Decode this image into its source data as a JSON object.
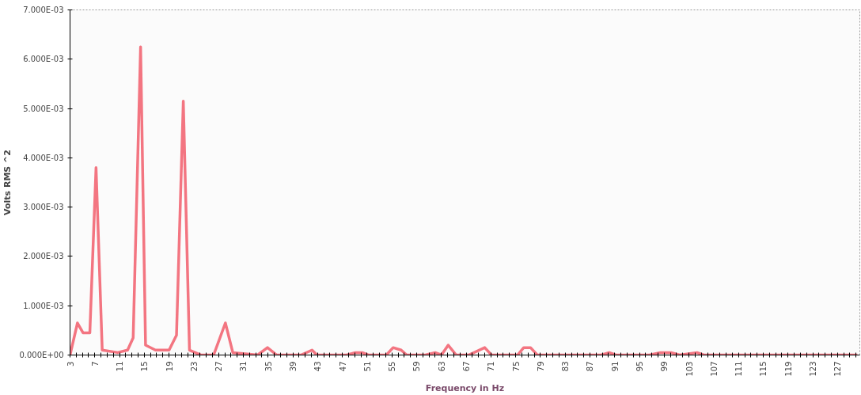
{
  "chart_data": {
    "type": "line",
    "xlabel": "Frequency in Hz",
    "ylabel": "Volts RMS ^2",
    "x": [
      3.0,
      4.2,
      5.1,
      6.2,
      7.2,
      8.2,
      10.7,
      12.3,
      13.2,
      14.4,
      15.2,
      16.8,
      19.0,
      20.2,
      21.3,
      22.3,
      24.2,
      26.2,
      28.1,
      29.3,
      33.3,
      34.9,
      36.4,
      40.3,
      42.1,
      42.9,
      47.7,
      49.1,
      50.2,
      51.2,
      54.1,
      55.2,
      56.5,
      57.4,
      60.4,
      62.0,
      63.0,
      64.1,
      65.4,
      67.4,
      70.0,
      71.1,
      75.3,
      76.3,
      77.4,
      78.5,
      84.0,
      86.2,
      88.8,
      90.1,
      91.2,
      96.6,
      98.4,
      100.1,
      101.5,
      104.3,
      105.4,
      107.6,
      108.9,
      111.1,
      113.2,
      116.3,
      121.1,
      122.8,
      125.0,
      127.6,
      130.2
    ],
    "series": [
      {
        "color": "#f26673",
        "values": [
          0.0,
          0.00065,
          0.00045,
          0.00045,
          0.0038,
          0.0001,
          5e-05,
          0.0001,
          0.00035,
          0.00625,
          0.0002,
          0.0001,
          0.0001,
          0.0004,
          0.00515,
          0.0001,
          0.0,
          0.0,
          0.00065,
          5e-05,
          0.0,
          0.00015,
          0.0,
          0.0,
          0.0001,
          0.0,
          0.0,
          5e-05,
          5e-05,
          0.0,
          0.0,
          0.00015,
          0.0001,
          0.0,
          0.0,
          5e-05,
          0.0,
          0.0002,
          0.0,
          0.0,
          0.00015,
          0.0,
          0.0,
          0.00015,
          0.00015,
          0.0,
          0.0,
          0.0,
          0.0,
          5e-05,
          0.0,
          0.0,
          5e-05,
          5e-05,
          0.0,
          5e-05,
          0.0,
          0.0,
          0.0,
          0.0,
          0.0,
          0.0,
          0.0,
          0.0,
          0.0,
          0.0,
          0.0
        ]
      }
    ],
    "xlim": [
      3,
      130.6
    ],
    "xticks": [
      3,
      {
        "value": 4,
        "label": null
      },
      {
        "value": 5,
        "label": null
      },
      {
        "value": 6,
        "label": null
      },
      7,
      {
        "value": 8,
        "label": null
      },
      {
        "value": 9,
        "label": null
      },
      {
        "value": 10,
        "label": null
      },
      11,
      {
        "value": 12,
        "label": null
      },
      {
        "value": 13,
        "label": null
      },
      {
        "value": 14,
        "label": null
      },
      15,
      {
        "value": 16,
        "label": null
      },
      {
        "value": 17,
        "label": null
      },
      {
        "value": 18,
        "label": null
      },
      19,
      {
        "value": 20,
        "label": null
      },
      {
        "value": 21,
        "label": null
      },
      {
        "value": 22,
        "label": null
      },
      23,
      {
        "value": 24,
        "label": null
      },
      {
        "value": 25,
        "label": null
      },
      {
        "value": 26,
        "label": null
      },
      27,
      {
        "value": 28,
        "label": null
      },
      {
        "value": 29,
        "label": null
      },
      {
        "value": 30,
        "label": null
      },
      31,
      {
        "value": 32,
        "label": null
      },
      {
        "value": 33,
        "label": null
      },
      {
        "value": 34,
        "label": null
      },
      35,
      {
        "value": 36,
        "label": null
      },
      {
        "value": 37,
        "label": null
      },
      {
        "value": 38,
        "label": null
      },
      39,
      {
        "value": 40,
        "label": null
      },
      {
        "value": 41,
        "label": null
      },
      {
        "value": 42,
        "label": null
      },
      43,
      {
        "value": 44,
        "label": null
      },
      {
        "value": 45,
        "label": null
      },
      {
        "value": 46,
        "label": null
      },
      47,
      {
        "value": 48,
        "label": null
      },
      {
        "value": 49,
        "label": null
      },
      {
        "value": 50,
        "label": null
      },
      51,
      {
        "value": 52,
        "label": null
      },
      {
        "value": 53,
        "label": null
      },
      {
        "value": 54,
        "label": null
      },
      55,
      {
        "value": 56,
        "label": null
      },
      {
        "value": 57,
        "label": null
      },
      {
        "value": 58,
        "label": null
      },
      59,
      {
        "value": 60,
        "label": null
      },
      {
        "value": 61,
        "label": null
      },
      {
        "value": 62,
        "label": null
      },
      63,
      {
        "value": 64,
        "label": null
      },
      {
        "value": 65,
        "label": null
      },
      {
        "value": 66,
        "label": null
      },
      67,
      {
        "value": 68,
        "label": null
      },
      {
        "value": 69,
        "label": null
      },
      {
        "value": 70,
        "label": null
      },
      71,
      {
        "value": 72,
        "label": null
      },
      {
        "value": 73,
        "label": null
      },
      {
        "value": 74,
        "label": null
      },
      75,
      {
        "value": 76,
        "label": null
      },
      {
        "value": 77,
        "label": null
      },
      {
        "value": 78,
        "label": null
      },
      79,
      {
        "value": 80,
        "label": null
      },
      {
        "value": 81,
        "label": null
      },
      {
        "value": 82,
        "label": null
      },
      83,
      {
        "value": 84,
        "label": null
      },
      {
        "value": 85,
        "label": null
      },
      {
        "value": 86,
        "label": null
      },
      87,
      {
        "value": 88,
        "label": null
      },
      {
        "value": 89,
        "label": null
      },
      {
        "value": 90,
        "label": null
      },
      91,
      {
        "value": 92,
        "label": null
      },
      {
        "value": 93,
        "label": null
      },
      {
        "value": 94,
        "label": null
      },
      95,
      {
        "value": 96,
        "label": null
      },
      {
        "value": 97,
        "label": null
      },
      {
        "value": 98,
        "label": null
      },
      99,
      {
        "value": 100,
        "label": null
      },
      {
        "value": 101,
        "label": null
      },
      {
        "value": 102,
        "label": null
      },
      103,
      {
        "value": 104,
        "label": null
      },
      {
        "value": 105,
        "label": null
      },
      {
        "value": 106,
        "label": null
      },
      107,
      {
        "value": 108,
        "label": null
      },
      {
        "value": 109,
        "label": null
      },
      {
        "value": 110,
        "label": null
      },
      111,
      {
        "value": 112,
        "label": null
      },
      {
        "value": 113,
        "label": null
      },
      {
        "value": 114,
        "label": null
      },
      115,
      {
        "value": 116,
        "label": null
      },
      {
        "value": 117,
        "label": null
      },
      {
        "value": 118,
        "label": null
      },
      119,
      {
        "value": 120,
        "label": null
      },
      {
        "value": 121,
        "label": null
      },
      {
        "value": 122,
        "label": null
      },
      123,
      {
        "value": 124,
        "label": null
      },
      {
        "value": 125,
        "label": null
      },
      {
        "value": 126,
        "label": null
      },
      127,
      {
        "value": 128,
        "label": null
      },
      {
        "value": 129,
        "label": null
      },
      {
        "value": 130,
        "label": null
      }
    ],
    "ylim": [
      0,
      0.007
    ],
    "yticks": [
      {
        "value": 0,
        "label": "0.000E+00"
      },
      {
        "value": 0.001,
        "label": "1.000E-03"
      },
      {
        "value": 0.002,
        "label": "2.000E-03"
      },
      {
        "value": 0.003,
        "label": "3.000E-03"
      },
      {
        "value": 0.004,
        "label": "4.000E-03"
      },
      {
        "value": 0.005,
        "label": "5.000E-03"
      },
      {
        "value": 0.006,
        "label": "6.000E-03"
      },
      {
        "value": 0.007,
        "label": "7.000E-03"
      }
    ],
    "grid": false,
    "marker": "none",
    "line_style": "solid"
  }
}
